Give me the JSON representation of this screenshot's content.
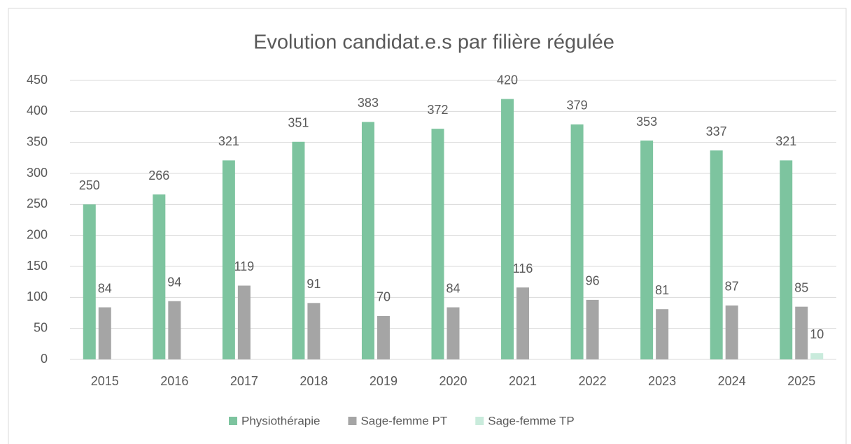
{
  "chart_data": {
    "type": "bar",
    "title": "Evolution candidat.e.s par filière régulée",
    "categories": [
      "2015",
      "2016",
      "2017",
      "2018",
      "2019",
      "2020",
      "2021",
      "2022",
      "2023",
      "2024",
      "2025"
    ],
    "series": [
      {
        "name": "Physiothérapie",
        "color": "#7dc49f",
        "values": [
          250,
          266,
          321,
          351,
          383,
          372,
          420,
          379,
          353,
          337,
          321
        ]
      },
      {
        "name": "Sage-femme PT",
        "color": "#a5a5a5",
        "values": [
          84,
          94,
          119,
          91,
          70,
          84,
          116,
          96,
          81,
          87,
          85
        ]
      },
      {
        "name": "Sage-femme TP",
        "color": "#c9ebdc",
        "values": [
          null,
          null,
          null,
          null,
          null,
          null,
          null,
          null,
          null,
          null,
          10
        ]
      }
    ],
    "ylim": [
      0,
      450
    ],
    "yticks": [
      0,
      50,
      100,
      150,
      200,
      250,
      300,
      350,
      400,
      450
    ],
    "grid": true,
    "legend": "bottom"
  }
}
